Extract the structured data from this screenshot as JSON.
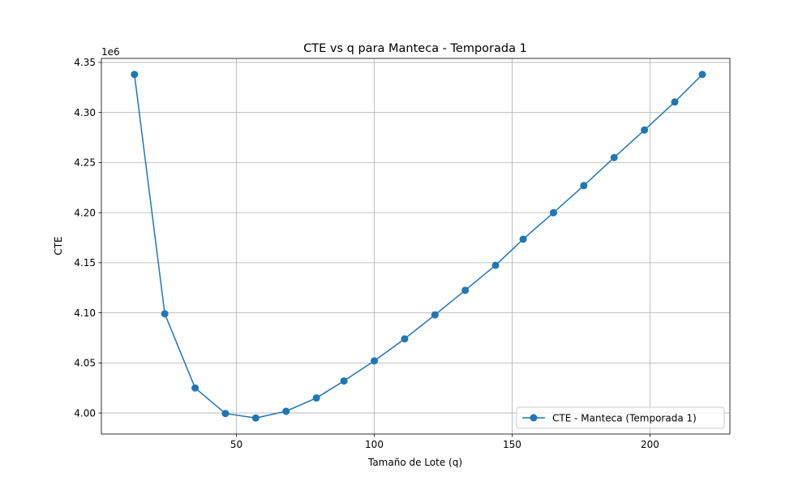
{
  "chart_data": {
    "type": "line",
    "title": "CTE vs q para Manteca - Temporada 1",
    "xlabel": "Tamaño de Lote (q)",
    "ylabel": "CTE",
    "y_offset_label": "1e6",
    "xlim": [
      1,
      229
    ],
    "ylim": [
      3.979,
      4.354
    ],
    "x_ticks": [
      50,
      100,
      150,
      200
    ],
    "y_ticks": [
      4.0,
      4.05,
      4.1,
      4.15,
      4.2,
      4.25,
      4.3,
      4.35
    ],
    "grid": true,
    "legend_position": "lower-right",
    "series": [
      {
        "name": "CTE - Manteca (Temporada 1)",
        "color": "#1f77b4",
        "marker": "circle",
        "x": [
          13,
          24,
          35,
          46,
          57,
          68,
          79,
          89,
          100,
          111,
          122,
          133,
          144,
          154,
          165,
          176,
          187,
          198,
          209,
          219
        ],
        "y": [
          4.338,
          4.099,
          4.025,
          3.9995,
          3.995,
          4.0017,
          4.015,
          4.032,
          4.052,
          4.074,
          4.098,
          4.1225,
          4.1475,
          4.1735,
          4.2,
          4.227,
          4.255,
          4.2825,
          4.3105,
          4.338
        ]
      }
    ]
  }
}
